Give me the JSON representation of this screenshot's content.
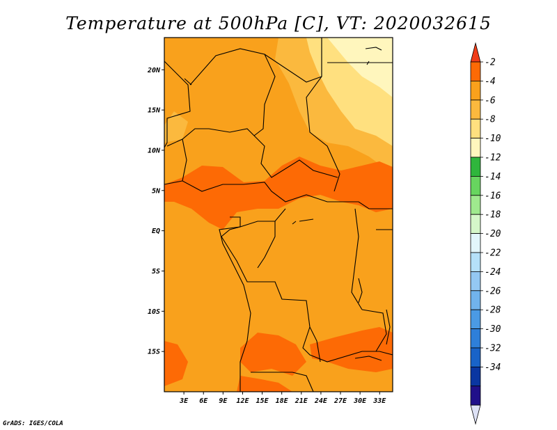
{
  "chart_data": {
    "type": "contour-map",
    "title": "Temperature at 500hPa [C], VT: 2020032615",
    "variable": "Temperature at 500hPa",
    "units": "C",
    "valid_time": "2020032615",
    "x_ticks": [
      "3E",
      "6E",
      "9E",
      "12E",
      "15E",
      "18E",
      "21E",
      "24E",
      "27E",
      "30E",
      "33E"
    ],
    "y_ticks": [
      "20N",
      "15N",
      "10N",
      "5N",
      "EQ",
      "5S",
      "10S",
      "15S"
    ],
    "lon_range": [
      0,
      35
    ],
    "lat_range": [
      -20,
      24
    ],
    "colorbar": {
      "labels": [
        "-2",
        "-4",
        "-6",
        "-8",
        "-10",
        "-12",
        "-14",
        "-16",
        "-18",
        "-20",
        "-22",
        "-24",
        "-26",
        "-28",
        "-30",
        "-32",
        "-34"
      ],
      "colors": [
        "#f03c18",
        "#fd6a05",
        "#f9a11c",
        "#fbb93e",
        "#ffe07f",
        "#fff6bd",
        "#2fb63c",
        "#67d55f",
        "#9fe98e",
        "#d5f7c9",
        "#e2f6fb",
        "#b5e1f9",
        "#94c8f3",
        "#71b3ec",
        "#4b9ae4",
        "#2e7fd9",
        "#1963c8",
        "#0a36a1",
        "#20108a",
        "#dde1f5"
      ]
    },
    "regions": [
      {
        "name": "north-west",
        "value_range": "-4 to -6",
        "color": "#f9a11c"
      },
      {
        "name": "north-east",
        "value_range": "-8 to -12",
        "color": "#ffe07f"
      },
      {
        "name": "central-band",
        "value_range": "-2 to -4",
        "color": "#fd6a05"
      },
      {
        "name": "south",
        "value_range": "-4 to -6",
        "color": "#f9a11c"
      }
    ]
  },
  "footer": {
    "credit": "GrADS: IGES/COLA"
  }
}
